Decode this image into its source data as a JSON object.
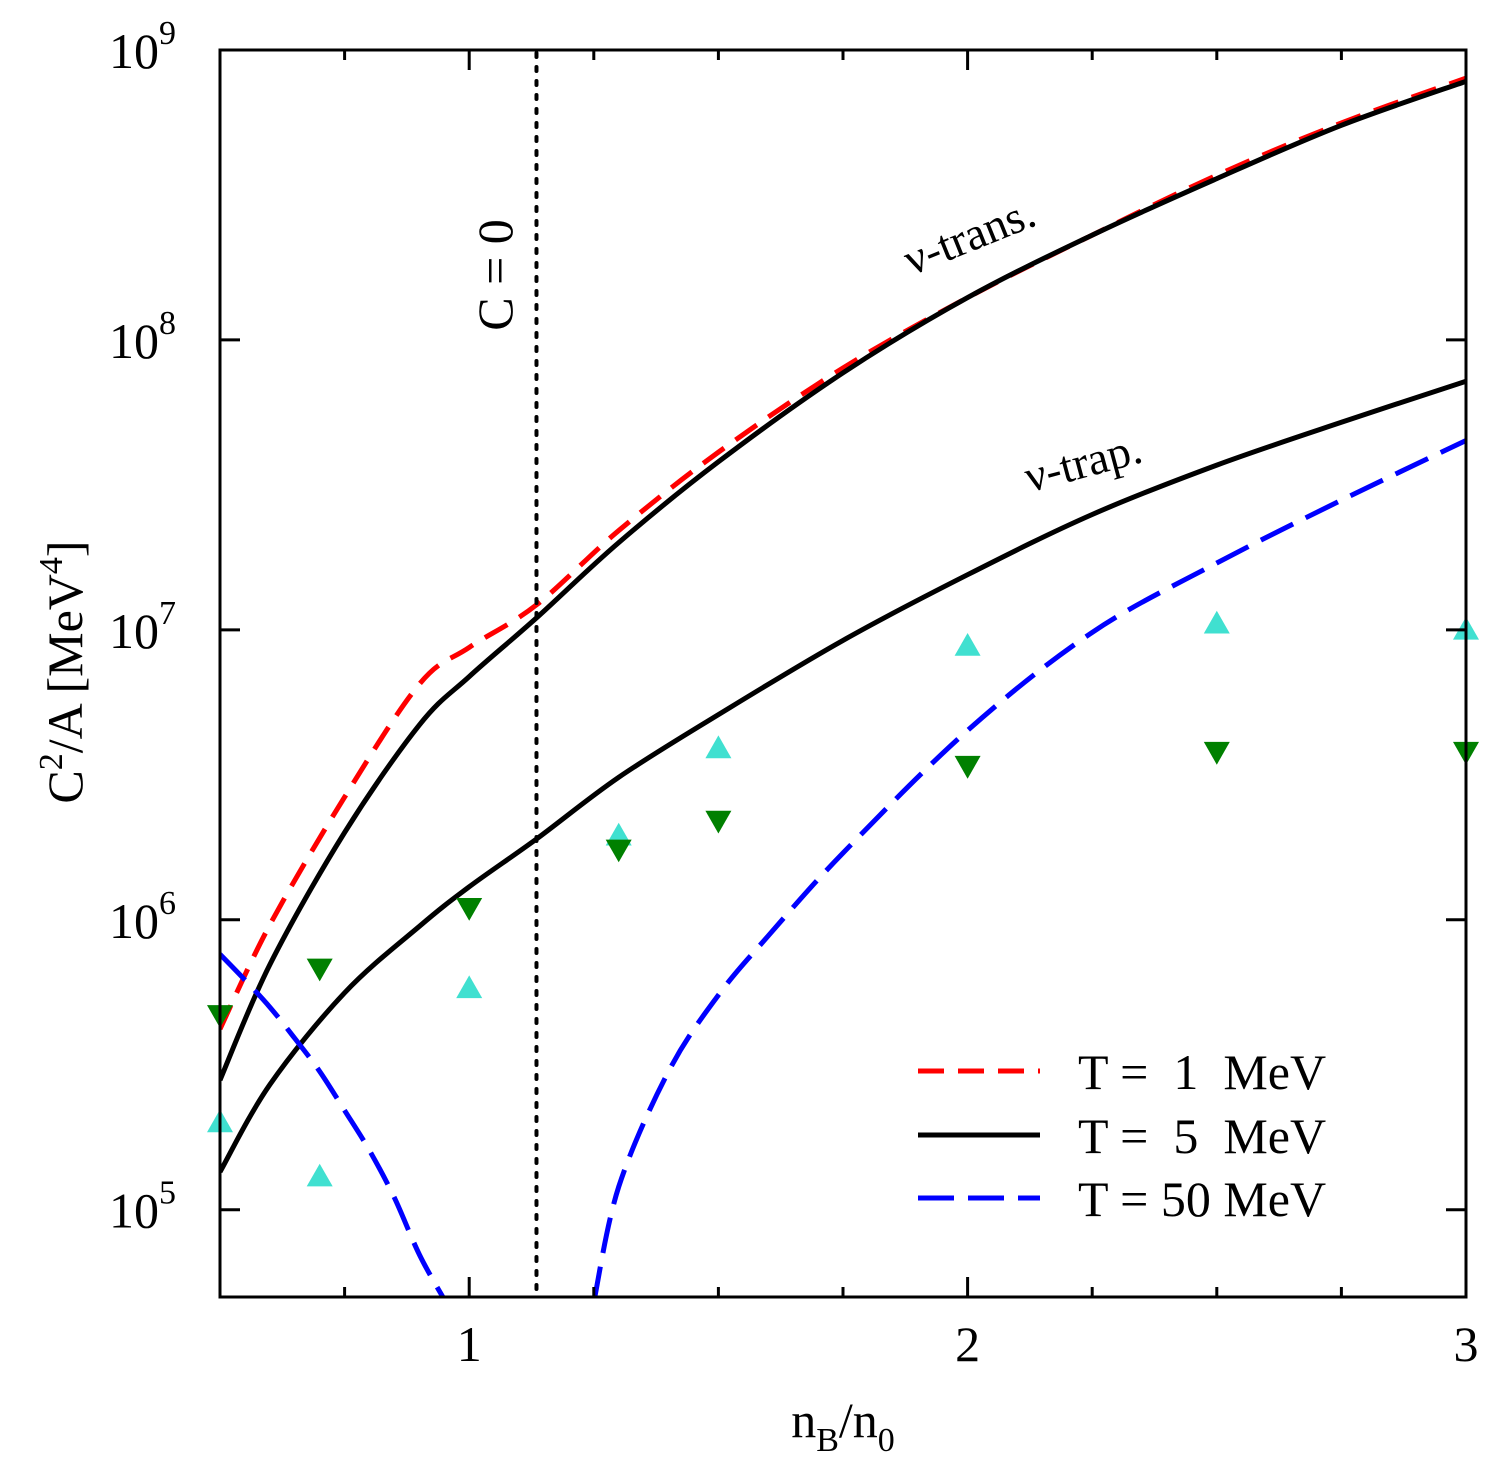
{
  "chart_data": {
    "type": "line",
    "xlabel_main": "n",
    "xlabel_sub1": "B",
    "xlabel_mid": "/n",
    "xlabel_sub2": "0",
    "ylabel_c": "C",
    "ylabel_sup2": "2",
    "ylabel_mid": "/A [MeV",
    "ylabel_sup4": "4",
    "ylabel_end": "]",
    "xlim": [
      0.5,
      3.0
    ],
    "ylim": [
      50000,
      1000000000
    ],
    "yscale": "log",
    "x_ticks": [
      {
        "value": 1,
        "label": "1"
      },
      {
        "value": 2,
        "label": "2"
      },
      {
        "value": 3,
        "label": "3"
      }
    ],
    "x_minor_ticks": [
      0.75,
      1.25,
      1.5,
      1.75,
      2.25,
      2.5,
      2.75
    ],
    "y_ticks": [
      {
        "value": 100000,
        "base": "10",
        "exp": "5"
      },
      {
        "value": 1000000,
        "base": "10",
        "exp": "6"
      },
      {
        "value": 10000000,
        "base": "10",
        "exp": "7"
      },
      {
        "value": 100000000,
        "base": "10",
        "exp": "8"
      },
      {
        "value": 1000000000,
        "base": "10",
        "exp": "9"
      }
    ],
    "vline": {
      "x": 1.135,
      "label": "C = 0"
    },
    "annotations": [
      {
        "text": "ν-trans.",
        "x": 1.95,
        "y": 130000000
      },
      {
        "text": "ν-trap.",
        "x": 2.2,
        "y": 29000000
      }
    ],
    "series": [
      {
        "name": "T =  1  MeV",
        "color": "#ff0000",
        "dash": "dashed",
        "legend": true,
        "x": [
          0.5,
          0.6,
          0.75,
          0.9,
          1.0,
          1.135,
          1.3,
          1.5,
          1.75,
          2.0,
          2.25,
          2.5,
          2.75,
          3.0
        ],
        "y": [
          420000,
          960000,
          2650000,
          6500000,
          8700000,
          12200000,
          22000000,
          41000000,
          80000000,
          140000000,
          230000000,
          370000000,
          560000000,
          800000000
        ]
      },
      {
        "name": "T =  5  MeV",
        "color": "#000000",
        "dash": "solid",
        "legend": true,
        "x": [
          0.5,
          0.6,
          0.75,
          0.9,
          1.0,
          1.135,
          1.3,
          1.5,
          1.75,
          2.0,
          2.25,
          2.5,
          2.75,
          3.0
        ],
        "y": [
          280000,
          700000,
          2000000,
          4700000,
          6900000,
          11000000,
          20000000,
          38000000,
          77000000,
          140000000,
          230000000,
          360000000,
          550000000,
          780000000
        ]
      },
      {
        "name": "T =  5  MeV (ν-trap.)",
        "color": "#000000",
        "dash": "solid",
        "legend": false,
        "x": [
          0.5,
          0.6,
          0.75,
          0.9,
          1.0,
          1.135,
          1.3,
          1.5,
          1.75,
          2.0,
          2.25,
          2.5,
          2.75,
          3.0
        ],
        "y": [
          135000,
          270000,
          560000,
          950000,
          1300000,
          1900000,
          3100000,
          5100000,
          9200000,
          15500000,
          25000000,
          37000000,
          52000000,
          72000000
        ]
      },
      {
        "name": "T = 50 MeV",
        "color": "#0000ff",
        "dash": "longdash",
        "legend": true,
        "segments": [
          {
            "x": [
              0.5,
              0.55,
              0.6,
              0.65,
              0.7,
              0.75,
              0.8,
              0.85,
              0.9,
              0.95
            ],
            "y": [
              760000,
              620000,
              500000,
              390000,
              300000,
              220000,
              160000,
              110000,
              70000,
              49000
            ]
          },
          {
            "x": [
              1.25,
              1.3,
              1.4,
              1.5,
              1.6,
              1.75,
              2.0,
              2.25,
              2.5,
              2.75,
              3.0
            ],
            "y": [
              48000,
              120000,
              300000,
              550000,
              880000,
              1700000,
              4500000,
              9800000,
              17000000,
              28000000,
              45000000
            ]
          }
        ]
      }
    ],
    "markers": [
      {
        "name": "turquoise triangles",
        "shape": "triangle-up",
        "color": "#40e0d0",
        "x": [
          0.5,
          0.7,
          1.0,
          1.3,
          1.5,
          2.0,
          2.5,
          3.0
        ],
        "y": [
          200000,
          130000,
          580000,
          1950000,
          3900000,
          8800000,
          10500000,
          10000000
        ]
      },
      {
        "name": "green triangles",
        "shape": "triangle-down",
        "color": "#008000",
        "x": [
          0.5,
          0.7,
          1.0,
          1.3,
          1.5,
          2.0,
          2.5,
          3.0
        ],
        "y": [
          470000,
          680000,
          1100000,
          1750000,
          2200000,
          3400000,
          3800000,
          3800000
        ]
      }
    ]
  }
}
